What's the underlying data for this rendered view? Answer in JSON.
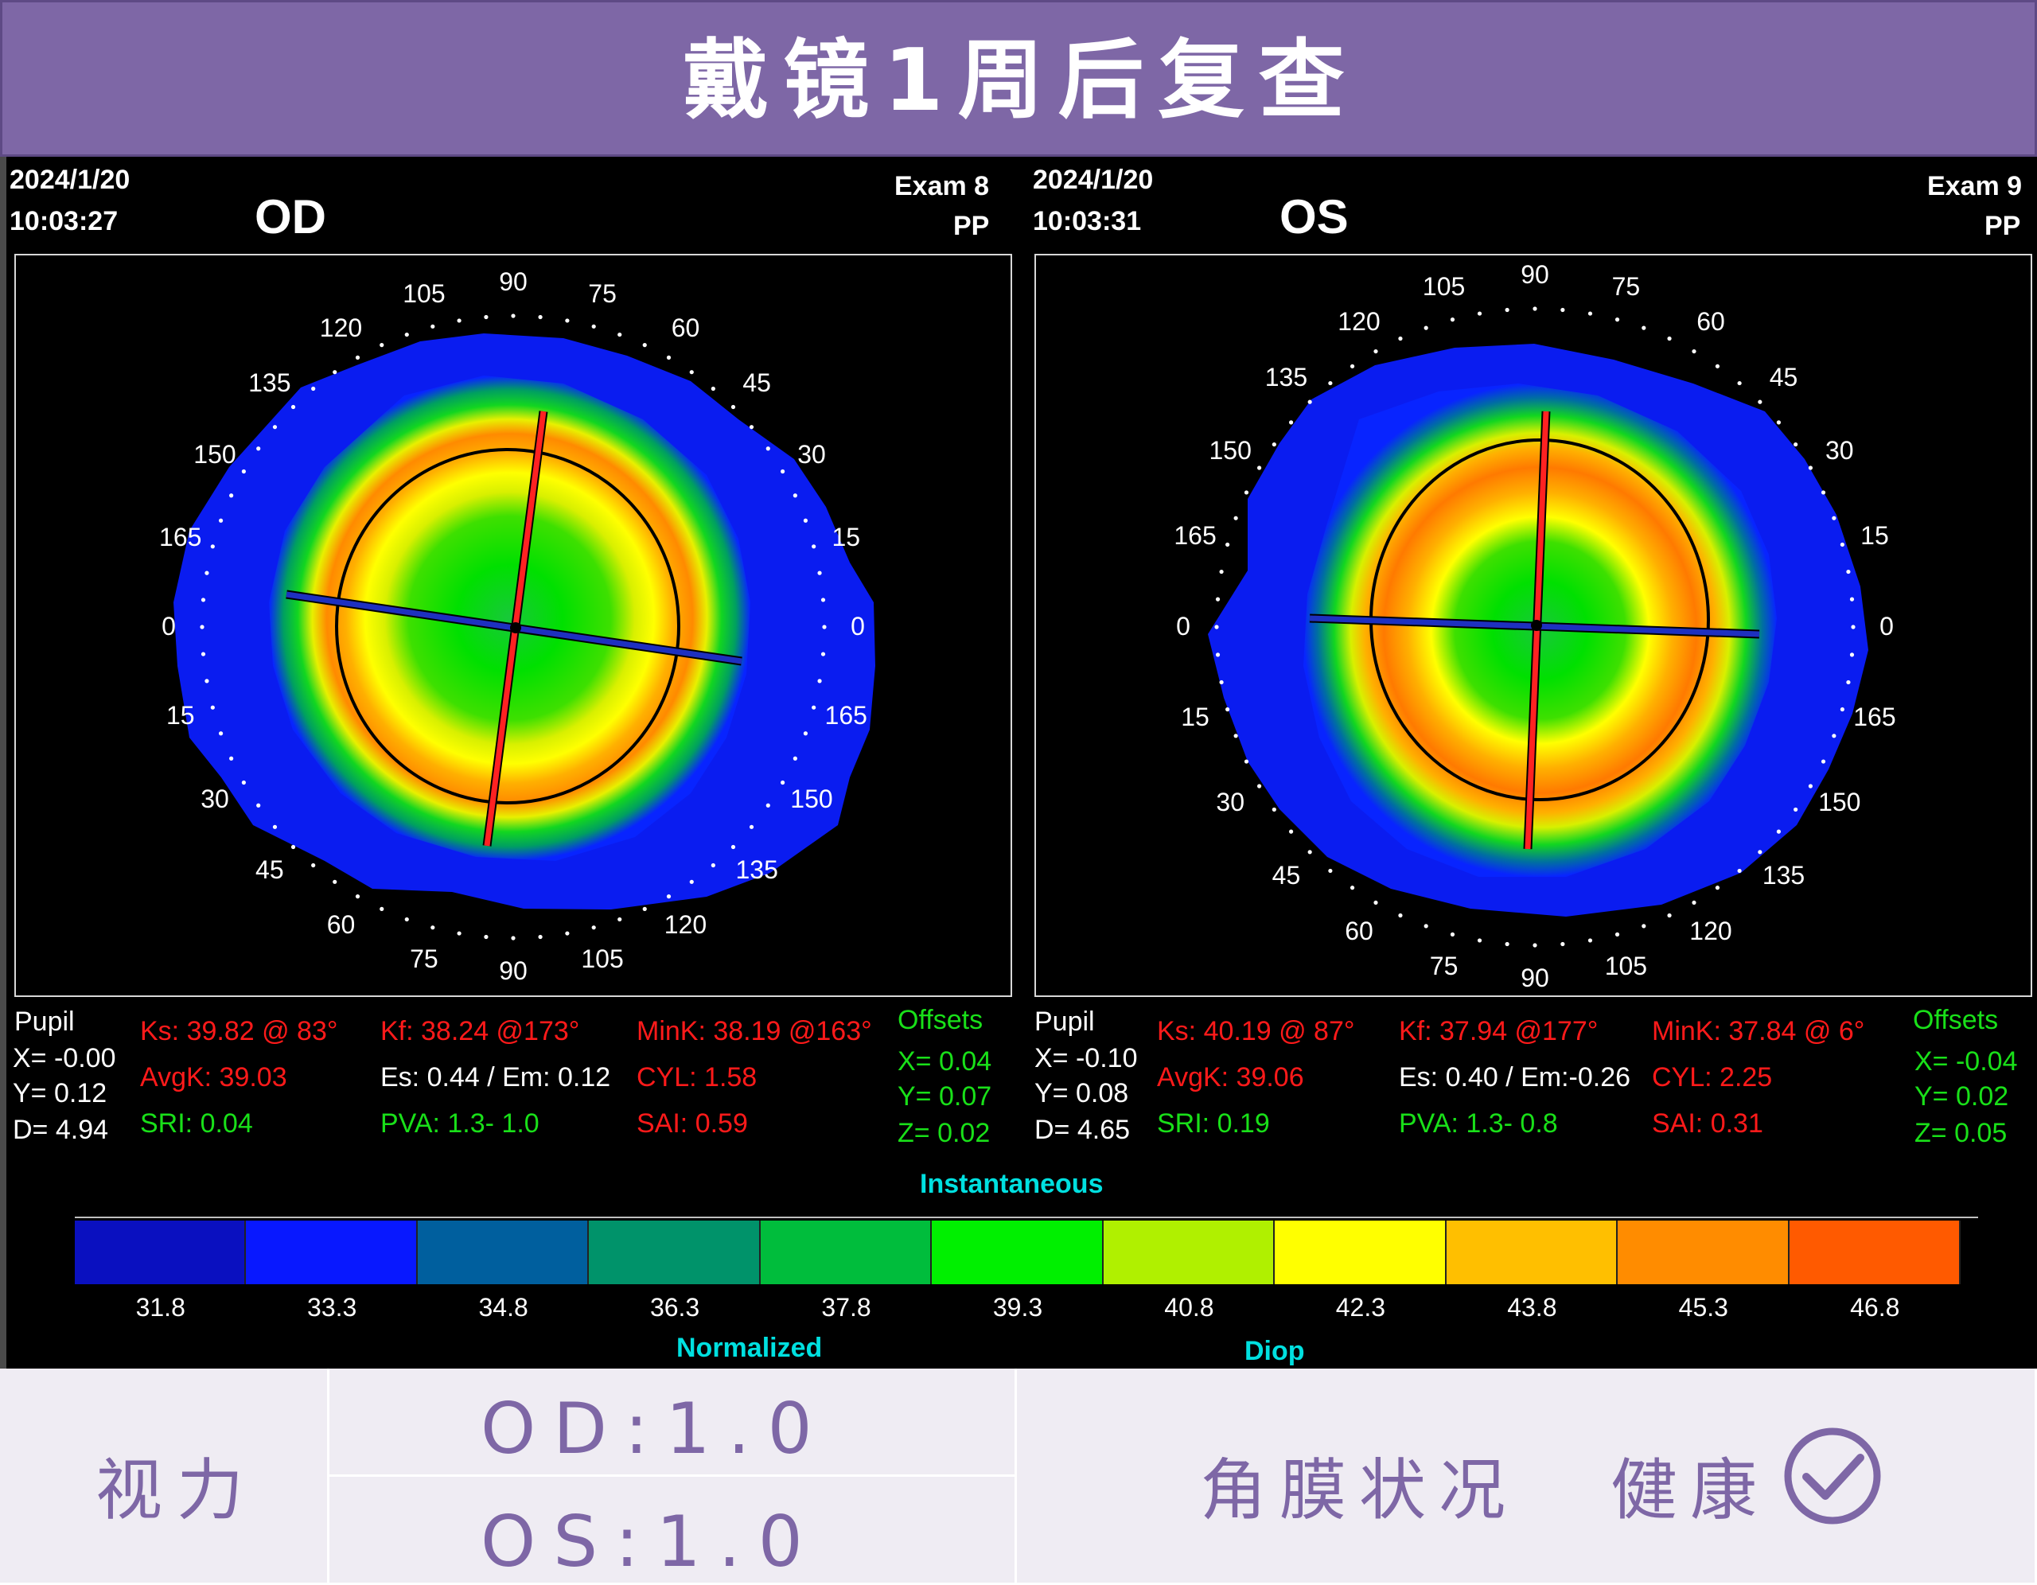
{
  "banner": {
    "title": "戴镜1周后复查"
  },
  "od": {
    "date": "2024/1/20",
    "time": "10:03:27",
    "eye": "OD",
    "exam": "Exam 8",
    "operator": "PP",
    "pupil_label": "Pupil",
    "pupil_x": "X= -0.00",
    "pupil_y": "Y= 0.12",
    "pupil_d": "D= 4.94",
    "ks": "Ks: 39.82 @ 83°",
    "avgk": "AvgK: 39.03",
    "sri": "SRI: 0.04",
    "kf": "Kf: 38.24 @173°",
    "es_em": "Es: 0.44 / Em: 0.12",
    "pva": "PVA:   1.3-  1.0",
    "mink": "MinK: 38.19 @163°",
    "cyl": "CYL:   1.58",
    "sai": "SAI: 0.59",
    "offsets_label": "Offsets",
    "off_x": "X=  0.04",
    "off_y": "Y=  0.07",
    "off_z": "Z=  0.02"
  },
  "os": {
    "date": "2024/1/20",
    "time": "10:03:31",
    "eye": "OS",
    "exam": "Exam 9",
    "operator": "PP",
    "pupil_label": "Pupil",
    "pupil_x": "X= -0.10",
    "pupil_y": "Y= 0.08",
    "pupil_d": "D=  4.65",
    "ks": "Ks: 40.19 @ 87°",
    "avgk": "AvgK: 39.06",
    "sri": "SRI: 0.19",
    "kf": "Kf: 37.94 @177°",
    "es_em": "Es: 0.40 / Em:-0.26",
    "pva": "PVA:   1.3-  0.8",
    "mink": "MinK: 37.84 @  6°",
    "cyl": "CYL:   2.25",
    "sai": "SAI: 0.31",
    "offsets_label": "Offsets",
    "off_x": "X= -0.04",
    "off_y": "Y=  0.02",
    "off_z": "Z=  0.05"
  },
  "angle_labels_upper": [
    "0",
    "15",
    "30",
    "45",
    "60",
    "75",
    "90",
    "105",
    "120",
    "135",
    "150",
    "165"
  ],
  "angle_labels_lower_od": [
    "15",
    "30",
    "45",
    "60",
    "75",
    "90",
    "105",
    "120",
    "135",
    "150",
    "165"
  ],
  "scale": {
    "title_top": "Instantaneous",
    "title_left": "Normalized",
    "title_right": "Diop",
    "values": [
      "31.8",
      "33.3",
      "34.8",
      "36.3",
      "37.8",
      "39.3",
      "40.8",
      "42.3",
      "43.8",
      "45.3",
      "46.8"
    ],
    "colors": [
      "#0a10c0",
      "#0818ff",
      "#005f9e",
      "#00936a",
      "#00bd3c",
      "#00f000",
      "#b0f000",
      "#ffff00",
      "#ffbf00",
      "#ff8c00",
      "#ff5a00"
    ]
  },
  "summary": {
    "vision_label": "视力",
    "od_vision": "OD:1.0",
    "os_vision": "OS:1.0",
    "cornea_label": "角膜状况",
    "cornea_status": "健康"
  },
  "colors": {
    "banner": "#7e67a6",
    "accent_text": "#7e67a6"
  }
}
